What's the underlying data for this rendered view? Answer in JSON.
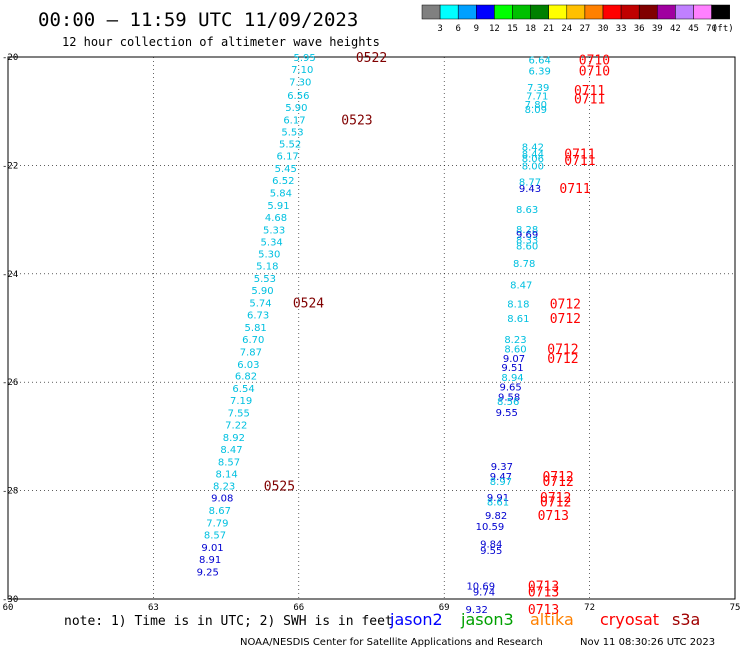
{
  "header": {
    "title": "00:00 – 11:59 UTC 11/09/2023",
    "subtitle": "12 hour collection of altimeter wave heights"
  },
  "colorbar": {
    "unit": "(ft)",
    "bins": [
      {
        "label": "3",
        "color": "#808080"
      },
      {
        "label": "6",
        "color": "#00ffff"
      },
      {
        "label": "9",
        "color": "#00a0ff"
      },
      {
        "label": "12",
        "color": "#0000ff"
      },
      {
        "label": "15",
        "color": "#00ff00"
      },
      {
        "label": "18",
        "color": "#00c000"
      },
      {
        "label": "21",
        "color": "#008000"
      },
      {
        "label": "24",
        "color": "#ffff00"
      },
      {
        "label": "27",
        "color": "#ffc000"
      },
      {
        "label": "30",
        "color": "#ff8000"
      },
      {
        "label": "33",
        "color": "#ff0000"
      },
      {
        "label": "36",
        "color": "#c00000"
      },
      {
        "label": "39",
        "color": "#800000"
      },
      {
        "label": "42",
        "color": "#a000a0"
      },
      {
        "label": "45",
        "color": "#c080ff"
      },
      {
        "label": "70",
        "color": "#ff80ff"
      },
      {
        "label": "",
        "color": "#000000"
      }
    ]
  },
  "footer": {
    "note": "note: 1) Time is in UTC; 2) SWH is in feet",
    "credit": "NOAA/NESDIS Center for Satellite Applications and Research",
    "timestamp": "Nov 11 08:30:26 UTC 2023",
    "satellites": [
      {
        "name": "jason2",
        "color": "#0000ff"
      },
      {
        "name": "jason3",
        "color": "#00a000"
      },
      {
        "name": "altika",
        "color": "#ff8000"
      },
      {
        "name": "cryosat",
        "color": "#ff0000"
      },
      {
        "name": "s3a",
        "color": "#a00000"
      }
    ]
  },
  "chart_data": {
    "type": "scatter",
    "xlim": [
      60,
      75
    ],
    "ylim": [
      -30,
      -20
    ],
    "xticks": [
      "60",
      "63",
      "66",
      "69",
      "72",
      "75"
    ],
    "yticks": [
      "-20",
      "-22",
      "-24",
      "-26",
      "-28",
      "-30"
    ],
    "grid": true,
    "points": [
      {
        "x": 66.35,
        "y": -20.0,
        "v": "5.95",
        "color": "#00c0e0"
      },
      {
        "x": 66.3,
        "y": -20.22,
        "v": "7.10",
        "color": "#00c0e0"
      },
      {
        "x": 66.26,
        "y": -20.45,
        "v": "7.30",
        "color": "#00c0e0"
      },
      {
        "x": 66.22,
        "y": -20.7,
        "v": "6.56",
        "color": "#00c0e0"
      },
      {
        "x": 66.18,
        "y": -20.92,
        "v": "5.90",
        "color": "#00c0e0"
      },
      {
        "x": 66.14,
        "y": -21.15,
        "v": "6.17",
        "color": "#00c0e0"
      },
      {
        "x": 66.1,
        "y": -21.37,
        "v": "5.53",
        "color": "#00c0e0"
      },
      {
        "x": 66.05,
        "y": -21.6,
        "v": "5.52",
        "color": "#00c0e0"
      },
      {
        "x": 66.0,
        "y": -21.82,
        "v": "6.17",
        "color": "#00c0e0"
      },
      {
        "x": 65.96,
        "y": -22.05,
        "v": "5.45",
        "color": "#00c0e0"
      },
      {
        "x": 65.91,
        "y": -22.27,
        "v": "6.52",
        "color": "#00c0e0"
      },
      {
        "x": 65.86,
        "y": -22.5,
        "v": "5.84",
        "color": "#00c0e0"
      },
      {
        "x": 65.81,
        "y": -22.73,
        "v": "5.91",
        "color": "#00c0e0"
      },
      {
        "x": 65.76,
        "y": -22.95,
        "v": "4.68",
        "color": "#00c0e0"
      },
      {
        "x": 65.72,
        "y": -23.18,
        "v": "5.33",
        "color": "#00c0e0"
      },
      {
        "x": 65.67,
        "y": -23.4,
        "v": "5.34",
        "color": "#00c0e0"
      },
      {
        "x": 65.62,
        "y": -23.63,
        "v": "5.30",
        "color": "#00c0e0"
      },
      {
        "x": 65.58,
        "y": -23.85,
        "v": "5.18",
        "color": "#00c0e0"
      },
      {
        "x": 65.53,
        "y": -24.08,
        "v": "5.53",
        "color": "#00c0e0"
      },
      {
        "x": 65.48,
        "y": -24.3,
        "v": "5.90",
        "color": "#00c0e0"
      },
      {
        "x": 65.44,
        "y": -24.53,
        "v": "5.74",
        "color": "#00c0e0"
      },
      {
        "x": 65.39,
        "y": -24.75,
        "v": "6.73",
        "color": "#00c0e0"
      },
      {
        "x": 65.34,
        "y": -24.98,
        "v": "5.81",
        "color": "#00c0e0"
      },
      {
        "x": 65.29,
        "y": -25.2,
        "v": "6.70",
        "color": "#00c0e0"
      },
      {
        "x": 65.24,
        "y": -25.43,
        "v": "7.87",
        "color": "#00c0e0"
      },
      {
        "x": 65.19,
        "y": -25.66,
        "v": "6.03",
        "color": "#00c0e0"
      },
      {
        "x": 65.14,
        "y": -25.88,
        "v": "6.82",
        "color": "#00c0e0"
      },
      {
        "x": 65.09,
        "y": -26.11,
        "v": "6.54",
        "color": "#00c0e0"
      },
      {
        "x": 65.04,
        "y": -26.33,
        "v": "7.19",
        "color": "#00c0e0"
      },
      {
        "x": 64.99,
        "y": -26.56,
        "v": "7.55",
        "color": "#00c0e0"
      },
      {
        "x": 64.94,
        "y": -26.78,
        "v": "7.22",
        "color": "#00c0e0"
      },
      {
        "x": 64.89,
        "y": -27.01,
        "v": "8.92",
        "color": "#00c0e0"
      },
      {
        "x": 64.84,
        "y": -27.23,
        "v": "8.47",
        "color": "#00c0e0"
      },
      {
        "x": 64.79,
        "y": -27.46,
        "v": "8.57",
        "color": "#00c0e0"
      },
      {
        "x": 64.74,
        "y": -27.68,
        "v": "8.14",
        "color": "#00c0e0"
      },
      {
        "x": 64.69,
        "y": -27.91,
        "v": "8.23",
        "color": "#00c0e0"
      },
      {
        "x": 64.65,
        "y": -28.13,
        "v": "9.08",
        "color": "#0000d0"
      },
      {
        "x": 64.6,
        "y": -28.36,
        "v": "8.67",
        "color": "#00c0e0"
      },
      {
        "x": 64.55,
        "y": -28.59,
        "v": "7.79",
        "color": "#00c0e0"
      },
      {
        "x": 64.5,
        "y": -28.81,
        "v": "8.57",
        "color": "#00c0e0"
      },
      {
        "x": 64.45,
        "y": -29.04,
        "v": "9.01",
        "color": "#0000d0"
      },
      {
        "x": 64.4,
        "y": -29.26,
        "v": "8.91",
        "color": "#0000d0"
      },
      {
        "x": 64.35,
        "y": -29.49,
        "v": "9.25",
        "color": "#0000d0"
      },
      {
        "x": 71.2,
        "y": -20.05,
        "v": "6.64",
        "color": "#00c0e0"
      },
      {
        "x": 71.2,
        "y": -20.25,
        "v": "6.39",
        "color": "#00c0e0"
      },
      {
        "x": 71.17,
        "y": -20.55,
        "v": "7.39",
        "color": "#00c0e0"
      },
      {
        "x": 71.15,
        "y": -20.71,
        "v": "7.71",
        "color": "#00c0e0"
      },
      {
        "x": 71.12,
        "y": -20.87,
        "v": "7.80",
        "color": "#00c0e0"
      },
      {
        "x": 71.12,
        "y": -20.96,
        "v": "8.09",
        "color": "#00c0e0"
      },
      {
        "x": 71.06,
        "y": -21.65,
        "v": "8.42",
        "color": "#00c0e0"
      },
      {
        "x": 71.06,
        "y": -21.78,
        "v": "8.44",
        "color": "#00c0e0"
      },
      {
        "x": 71.06,
        "y": -21.86,
        "v": "8.06",
        "color": "#00c0e0"
      },
      {
        "x": 71.06,
        "y": -22.0,
        "v": "8.00",
        "color": "#00c0e0"
      },
      {
        "x": 71.0,
        "y": -22.3,
        "v": "8.77",
        "color": "#00c0e0"
      },
      {
        "x": 71.0,
        "y": -22.42,
        "v": "9.43",
        "color": "#0000d0"
      },
      {
        "x": 70.94,
        "y": -22.8,
        "v": "8.63",
        "color": "#00c0e0"
      },
      {
        "x": 70.94,
        "y": -23.17,
        "v": "8.28",
        "color": "#00c0e0"
      },
      {
        "x": 70.94,
        "y": -23.27,
        "v": "9.69",
        "color": "#0000d0"
      },
      {
        "x": 70.94,
        "y": -23.37,
        "v": "8.33",
        "color": "#00c0e0"
      },
      {
        "x": 70.94,
        "y": -23.48,
        "v": "8.60",
        "color": "#00c0e0"
      },
      {
        "x": 70.88,
        "y": -23.8,
        "v": "8.78",
        "color": "#00c0e0"
      },
      {
        "x": 70.82,
        "y": -24.2,
        "v": "8.47",
        "color": "#00c0e0"
      },
      {
        "x": 70.76,
        "y": -24.55,
        "v": "8.18",
        "color": "#00c0e0"
      },
      {
        "x": 70.76,
        "y": -24.82,
        "v": "8.61",
        "color": "#00c0e0"
      },
      {
        "x": 70.7,
        "y": -25.2,
        "v": "8.23",
        "color": "#00c0e0"
      },
      {
        "x": 70.7,
        "y": -25.38,
        "v": "8.60",
        "color": "#00c0e0"
      },
      {
        "x": 70.67,
        "y": -25.55,
        "v": "9.07",
        "color": "#0000d0"
      },
      {
        "x": 70.64,
        "y": -25.72,
        "v": "9.51",
        "color": "#0000d0"
      },
      {
        "x": 70.64,
        "y": -25.9,
        "v": "8.94",
        "color": "#00c0e0"
      },
      {
        "x": 70.6,
        "y": -26.08,
        "v": "9.65",
        "color": "#0000d0"
      },
      {
        "x": 70.57,
        "y": -26.26,
        "v": "9.58",
        "color": "#0000d0"
      },
      {
        "x": 70.55,
        "y": -26.35,
        "v": "8.56",
        "color": "#00c0e0"
      },
      {
        "x": 70.52,
        "y": -26.55,
        "v": "9.55",
        "color": "#0000d0"
      },
      {
        "x": 70.42,
        "y": -27.55,
        "v": "9.37",
        "color": "#0000d0"
      },
      {
        "x": 70.4,
        "y": -27.73,
        "v": "9.47",
        "color": "#0000d0"
      },
      {
        "x": 70.4,
        "y": -27.82,
        "v": "8.97",
        "color": "#00c0e0"
      },
      {
        "x": 70.34,
        "y": -28.12,
        "v": "9.91",
        "color": "#0000d0"
      },
      {
        "x": 70.34,
        "y": -28.2,
        "v": "8.61",
        "color": "#00c0e0"
      },
      {
        "x": 70.3,
        "y": -28.45,
        "v": "9.82",
        "color": "#0000d0"
      },
      {
        "x": 70.24,
        "y": -28.65,
        "v": "10.59",
        "color": "#0000d0"
      },
      {
        "x": 70.2,
        "y": -28.98,
        "v": "9.84",
        "color": "#0000d0"
      },
      {
        "x": 70.2,
        "y": -29.1,
        "v": "9.55",
        "color": "#0000d0"
      },
      {
        "x": 70.05,
        "y": -29.75,
        "v": "10.69",
        "color": "#0000d0"
      },
      {
        "x": 70.05,
        "y": -29.86,
        "v": "9.74",
        "color": "#0000d0"
      },
      {
        "x": 69.9,
        "y": -30.18,
        "v": "9.32",
        "color": "#0000d0"
      }
    ],
    "time_labels": [
      {
        "x": 67.5,
        "y": -20.0,
        "text": "0522",
        "color": "#800000"
      },
      {
        "x": 67.2,
        "y": -21.15,
        "text": "0523",
        "color": "#800000"
      },
      {
        "x": 66.2,
        "y": -24.53,
        "text": "0524",
        "color": "#800000"
      },
      {
        "x": 65.6,
        "y": -27.91,
        "text": "0525",
        "color": "#800000"
      },
      {
        "x": 72.1,
        "y": -20.05,
        "text": "0710",
        "color": "#ff0000"
      },
      {
        "x": 72.1,
        "y": -20.25,
        "text": "0710",
        "color": "#ff0000"
      },
      {
        "x": 72.0,
        "y": -20.61,
        "text": "0711",
        "color": "#ff0000"
      },
      {
        "x": 72.0,
        "y": -20.77,
        "text": "0711",
        "color": "#ff0000"
      },
      {
        "x": 71.8,
        "y": -21.78,
        "text": "0711",
        "color": "#ff0000"
      },
      {
        "x": 71.8,
        "y": -21.9,
        "text": "0711",
        "color": "#ff0000"
      },
      {
        "x": 71.7,
        "y": -22.42,
        "text": "0711",
        "color": "#ff0000"
      },
      {
        "x": 71.5,
        "y": -24.55,
        "text": "0712",
        "color": "#ff0000"
      },
      {
        "x": 71.5,
        "y": -24.82,
        "text": "0712",
        "color": "#ff0000"
      },
      {
        "x": 71.45,
        "y": -25.38,
        "text": "0712",
        "color": "#ff0000"
      },
      {
        "x": 71.45,
        "y": -25.55,
        "text": "0712",
        "color": "#ff0000"
      },
      {
        "x": 71.35,
        "y": -27.73,
        "text": "0712",
        "color": "#ff0000"
      },
      {
        "x": 71.35,
        "y": -27.82,
        "text": "0712",
        "color": "#ff0000"
      },
      {
        "x": 71.3,
        "y": -28.12,
        "text": "0712",
        "color": "#ff0000"
      },
      {
        "x": 71.3,
        "y": -28.2,
        "text": "0712",
        "color": "#ff0000"
      },
      {
        "x": 71.25,
        "y": -28.45,
        "text": "0713",
        "color": "#ff0000"
      },
      {
        "x": 71.05,
        "y": -29.75,
        "text": "0713",
        "color": "#ff0000"
      },
      {
        "x": 71.05,
        "y": -29.86,
        "text": "0713",
        "color": "#ff0000"
      },
      {
        "x": 71.05,
        "y": -30.18,
        "text": "0713",
        "color": "#ff0000"
      }
    ]
  }
}
